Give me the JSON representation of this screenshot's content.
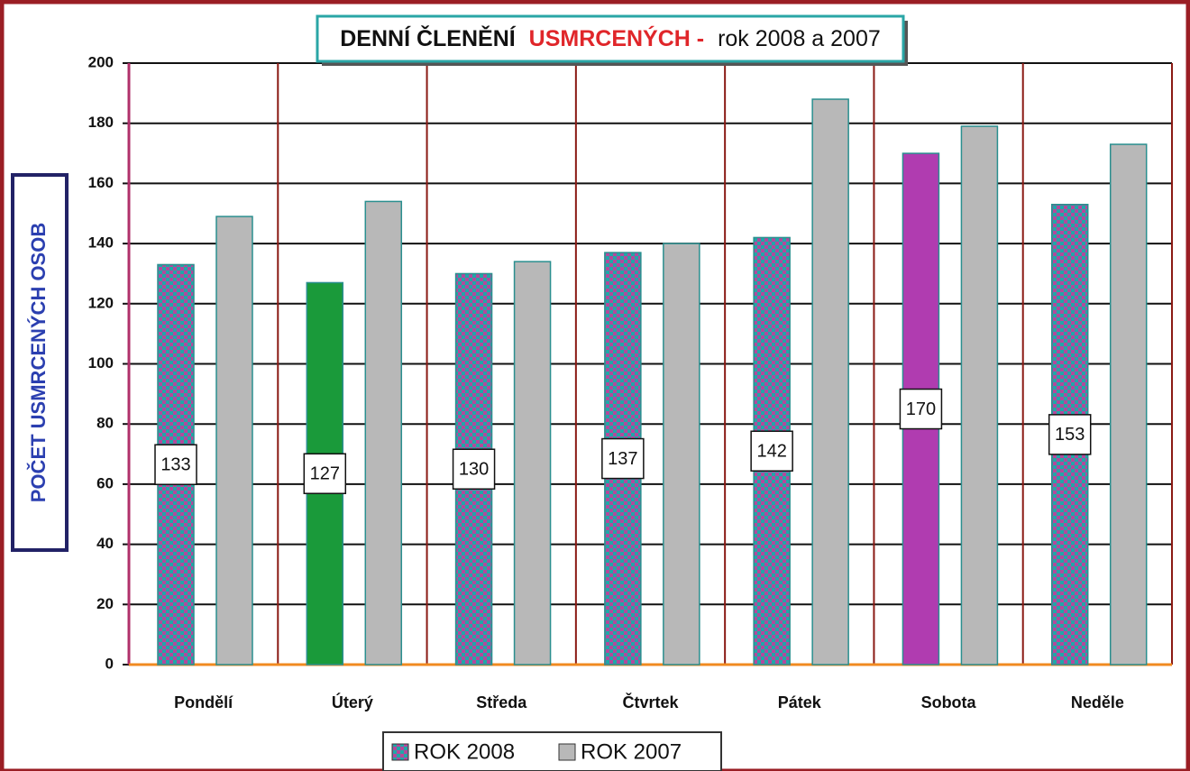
{
  "chart_data": {
    "type": "bar",
    "title": [
      "DENNÍ ČLENĚNÍ",
      "USMRCENÝCH -",
      "rok 2008 a 2007"
    ],
    "y_label": "POČET USMRCENÝCH OSOB",
    "categories": [
      "Pondělí",
      "Úterý",
      "Středa",
      "Čtvrtek",
      "Pátek",
      "Sobota",
      "Neděle"
    ],
    "series": [
      {
        "name": "ROK 2008",
        "color": "#1fa8a8",
        "pattern_color": "#b4489c",
        "point_colors": [
          null,
          "#1a9a3a",
          null,
          null,
          null,
          "#b03cb0",
          null
        ],
        "values": [
          133,
          127,
          130,
          137,
          142,
          170,
          153
        ]
      },
      {
        "name": "ROK 2007",
        "color": "#b8b8b8",
        "values": [
          149,
          154,
          134,
          140,
          188,
          179,
          173
        ]
      }
    ],
    "ylim": [
      0,
      200
    ],
    "yticks": [
      0,
      20,
      40,
      60,
      80,
      100,
      120,
      140,
      160,
      180,
      200
    ],
    "grid": true,
    "data_labels_series": 0
  }
}
